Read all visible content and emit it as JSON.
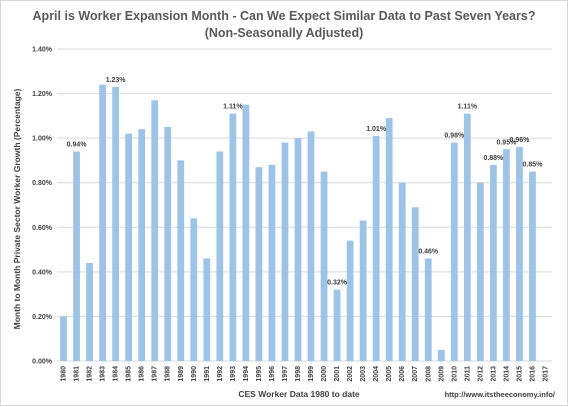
{
  "chart_data": {
    "type": "bar",
    "title": "April is Worker Expansion Month - Can We Expect Similar Data to Past Seven Years?",
    "subtitle": "(Non-Seasonally Adjusted)",
    "xlabel": "CES Worker Data 1980 to date",
    "ylabel": "Month to Month Private Sector Worker Growth (Percentage)",
    "source": "http://www.itstheeconomy.info/",
    "ylim": [
      0,
      1.4
    ],
    "yticks": [
      "0.00%",
      "0.20%",
      "0.40%",
      "0.60%",
      "0.80%",
      "1.00%",
      "1.20%",
      "1.40%"
    ],
    "ytick_values": [
      0,
      0.2,
      0.4,
      0.6,
      0.8,
      1.0,
      1.2,
      1.4
    ],
    "grid": true,
    "legend": "none",
    "bar_color": "#9dc3e6",
    "categories": [
      "1980",
      "1981",
      "1982",
      "1983",
      "1984",
      "1985",
      "1986",
      "1987",
      "1988",
      "1989",
      "1990",
      "1991",
      "1992",
      "1993",
      "1994",
      "1995",
      "1996",
      "1997",
      "1998",
      "1999",
      "2000",
      "2001",
      "2002",
      "2003",
      "2004",
      "2005",
      "2006",
      "2007",
      "2008",
      "2009",
      "2010",
      "2011",
      "2012",
      "2013",
      "2014",
      "2015",
      "2016",
      "2017"
    ],
    "values": [
      0.2,
      0.94,
      0.44,
      1.24,
      1.23,
      1.02,
      1.04,
      1.17,
      1.05,
      0.9,
      0.64,
      0.46,
      0.94,
      1.11,
      1.15,
      0.87,
      0.88,
      0.98,
      1.0,
      1.03,
      0.85,
      0.32,
      0.54,
      0.63,
      1.01,
      1.09,
      0.8,
      0.69,
      0.46,
      0.05,
      0.98,
      1.11,
      0.8,
      0.88,
      0.95,
      0.96,
      0.85,
      null
    ],
    "data_labels": {
      "1": "0.94%",
      "4": "1.23%",
      "13": "1.11%",
      "21": "0.32%",
      "24": "1.01%",
      "28": "0.46%",
      "30": "0.98%",
      "31": "1.11%",
      "33": "0.88%",
      "34": "0.95%",
      "35": "0.96%",
      "36": "0.85%"
    }
  }
}
